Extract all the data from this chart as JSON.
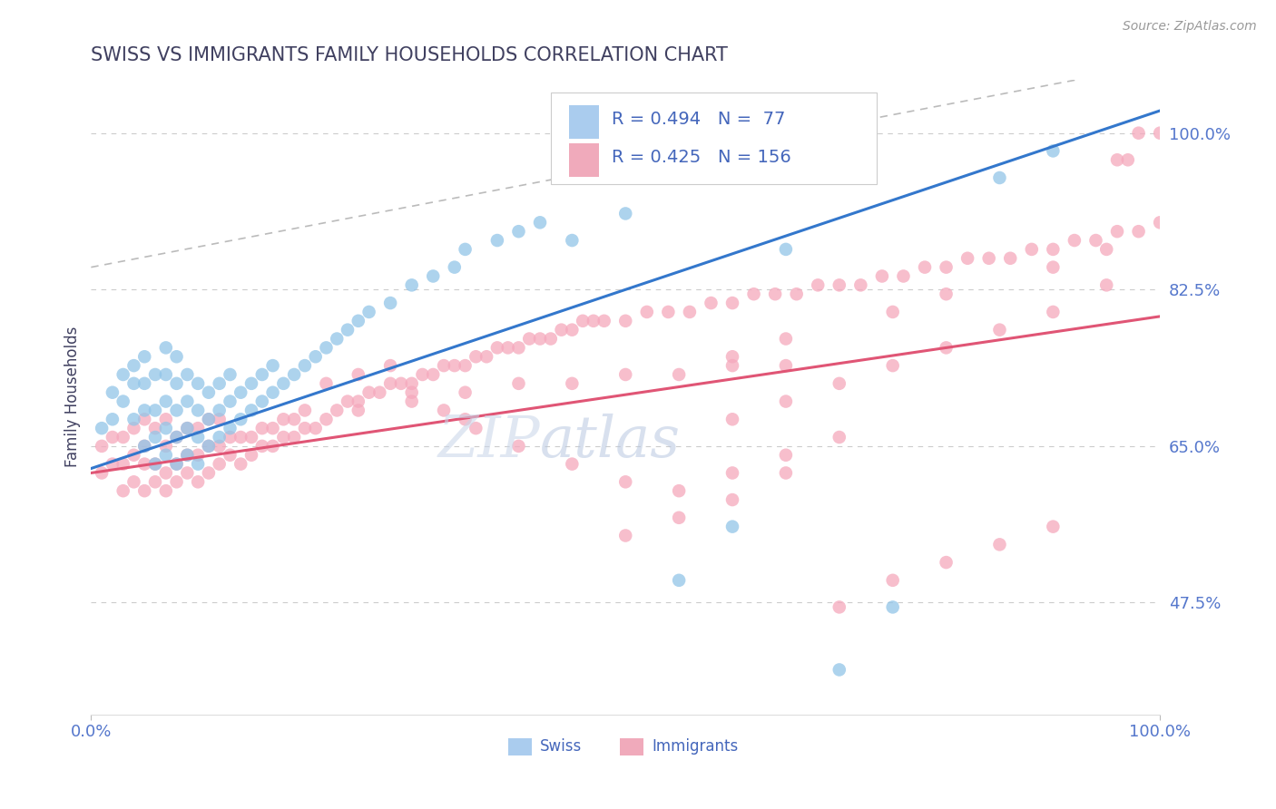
{
  "title": "SWISS VS IMMIGRANTS FAMILY HOUSEHOLDS CORRELATION CHART",
  "source_text": "Source: ZipAtlas.com",
  "ylabel": "Family Households",
  "xlim": [
    0.0,
    1.0
  ],
  "ylim": [
    0.35,
    1.06
  ],
  "yticks": [
    0.475,
    0.65,
    0.825,
    1.0
  ],
  "xticks": [
    0.0,
    1.0
  ],
  "swiss_color": "#92C5E8",
  "imm_color": "#F5A8BC",
  "swiss_line_color": "#3377CC",
  "imm_line_color": "#E05575",
  "dashed_line_color": "#BBBBBB",
  "grid_color": "#CCCCCC",
  "title_color": "#404060",
  "axis_label_color": "#4466BB",
  "tick_label_color": "#5577CC",
  "background_color": "#FFFFFF",
  "watermark_text": "ZIPAtlas",
  "watermark_color": "#C8D8EE",
  "legend_swiss_r": "R = 0.494",
  "legend_swiss_n": "N =  77",
  "legend_imm_r": "R = 0.425",
  "legend_imm_n": "N = 156",
  "swiss_x": [
    0.01,
    0.02,
    0.02,
    0.03,
    0.03,
    0.04,
    0.04,
    0.04,
    0.05,
    0.05,
    0.05,
    0.05,
    0.06,
    0.06,
    0.06,
    0.06,
    0.07,
    0.07,
    0.07,
    0.07,
    0.07,
    0.08,
    0.08,
    0.08,
    0.08,
    0.08,
    0.09,
    0.09,
    0.09,
    0.09,
    0.1,
    0.1,
    0.1,
    0.1,
    0.11,
    0.11,
    0.11,
    0.12,
    0.12,
    0.12,
    0.13,
    0.13,
    0.13,
    0.14,
    0.14,
    0.15,
    0.15,
    0.16,
    0.16,
    0.17,
    0.17,
    0.18,
    0.19,
    0.2,
    0.21,
    0.22,
    0.23,
    0.24,
    0.25,
    0.26,
    0.28,
    0.3,
    0.32,
    0.34,
    0.35,
    0.38,
    0.4,
    0.42,
    0.45,
    0.5,
    0.55,
    0.6,
    0.65,
    0.7,
    0.75,
    0.85,
    0.9
  ],
  "swiss_y": [
    0.67,
    0.68,
    0.71,
    0.7,
    0.73,
    0.68,
    0.72,
    0.74,
    0.65,
    0.69,
    0.72,
    0.75,
    0.63,
    0.66,
    0.69,
    0.73,
    0.64,
    0.67,
    0.7,
    0.73,
    0.76,
    0.63,
    0.66,
    0.69,
    0.72,
    0.75,
    0.64,
    0.67,
    0.7,
    0.73,
    0.63,
    0.66,
    0.69,
    0.72,
    0.65,
    0.68,
    0.71,
    0.66,
    0.69,
    0.72,
    0.67,
    0.7,
    0.73,
    0.68,
    0.71,
    0.69,
    0.72,
    0.7,
    0.73,
    0.71,
    0.74,
    0.72,
    0.73,
    0.74,
    0.75,
    0.76,
    0.77,
    0.78,
    0.79,
    0.8,
    0.81,
    0.83,
    0.84,
    0.85,
    0.87,
    0.88,
    0.89,
    0.9,
    0.88,
    0.91,
    0.5,
    0.56,
    0.87,
    0.4,
    0.47,
    0.95,
    0.98
  ],
  "imm_x": [
    0.01,
    0.01,
    0.02,
    0.02,
    0.03,
    0.03,
    0.03,
    0.04,
    0.04,
    0.04,
    0.05,
    0.05,
    0.05,
    0.05,
    0.06,
    0.06,
    0.06,
    0.07,
    0.07,
    0.07,
    0.07,
    0.08,
    0.08,
    0.08,
    0.09,
    0.09,
    0.09,
    0.1,
    0.1,
    0.1,
    0.11,
    0.11,
    0.11,
    0.12,
    0.12,
    0.12,
    0.13,
    0.13,
    0.14,
    0.14,
    0.15,
    0.15,
    0.16,
    0.16,
    0.17,
    0.17,
    0.18,
    0.18,
    0.19,
    0.19,
    0.2,
    0.2,
    0.21,
    0.22,
    0.23,
    0.24,
    0.25,
    0.26,
    0.27,
    0.28,
    0.29,
    0.3,
    0.31,
    0.32,
    0.33,
    0.34,
    0.35,
    0.36,
    0.37,
    0.38,
    0.39,
    0.4,
    0.41,
    0.42,
    0.43,
    0.44,
    0.45,
    0.46,
    0.47,
    0.48,
    0.5,
    0.52,
    0.54,
    0.56,
    0.58,
    0.6,
    0.62,
    0.64,
    0.66,
    0.68,
    0.7,
    0.72,
    0.74,
    0.76,
    0.78,
    0.8,
    0.82,
    0.84,
    0.86,
    0.88,
    0.9,
    0.92,
    0.94,
    0.96,
    0.98,
    1.0,
    0.98,
    1.0,
    0.97,
    0.96,
    0.35,
    0.4,
    0.45,
    0.5,
    0.55,
    0.6,
    0.65,
    0.7,
    0.22,
    0.25,
    0.28,
    0.3,
    0.33,
    0.36,
    0.5,
    0.55,
    0.6,
    0.65,
    0.7,
    0.75,
    0.8,
    0.85,
    0.9,
    0.6,
    0.65,
    0.7,
    0.75,
    0.8,
    0.85,
    0.9,
    0.95,
    0.6,
    0.65,
    0.75,
    0.8,
    0.9,
    0.95,
    0.25,
    0.3,
    0.35,
    0.4,
    0.45,
    0.5,
    0.55,
    0.6,
    0.65
  ],
  "imm_y": [
    0.62,
    0.65,
    0.63,
    0.66,
    0.6,
    0.63,
    0.66,
    0.61,
    0.64,
    0.67,
    0.6,
    0.63,
    0.65,
    0.68,
    0.61,
    0.63,
    0.67,
    0.6,
    0.62,
    0.65,
    0.68,
    0.61,
    0.63,
    0.66,
    0.62,
    0.64,
    0.67,
    0.61,
    0.64,
    0.67,
    0.62,
    0.65,
    0.68,
    0.63,
    0.65,
    0.68,
    0.64,
    0.66,
    0.63,
    0.66,
    0.64,
    0.66,
    0.65,
    0.67,
    0.65,
    0.67,
    0.66,
    0.68,
    0.66,
    0.68,
    0.67,
    0.69,
    0.67,
    0.68,
    0.69,
    0.7,
    0.7,
    0.71,
    0.71,
    0.72,
    0.72,
    0.72,
    0.73,
    0.73,
    0.74,
    0.74,
    0.74,
    0.75,
    0.75,
    0.76,
    0.76,
    0.76,
    0.77,
    0.77,
    0.77,
    0.78,
    0.78,
    0.79,
    0.79,
    0.79,
    0.79,
    0.8,
    0.8,
    0.8,
    0.81,
    0.81,
    0.82,
    0.82,
    0.82,
    0.83,
    0.83,
    0.83,
    0.84,
    0.84,
    0.85,
    0.85,
    0.86,
    0.86,
    0.86,
    0.87,
    0.87,
    0.88,
    0.88,
    0.89,
    0.89,
    0.9,
    1.0,
    1.0,
    0.97,
    0.97,
    0.68,
    0.65,
    0.63,
    0.61,
    0.6,
    0.62,
    0.64,
    0.66,
    0.72,
    0.73,
    0.74,
    0.71,
    0.69,
    0.67,
    0.55,
    0.57,
    0.59,
    0.62,
    0.47,
    0.5,
    0.52,
    0.54,
    0.56,
    0.68,
    0.7,
    0.72,
    0.74,
    0.76,
    0.78,
    0.8,
    0.83,
    0.75,
    0.77,
    0.8,
    0.82,
    0.85,
    0.87,
    0.69,
    0.7,
    0.71,
    0.72,
    0.72,
    0.73,
    0.73,
    0.74,
    0.74
  ]
}
